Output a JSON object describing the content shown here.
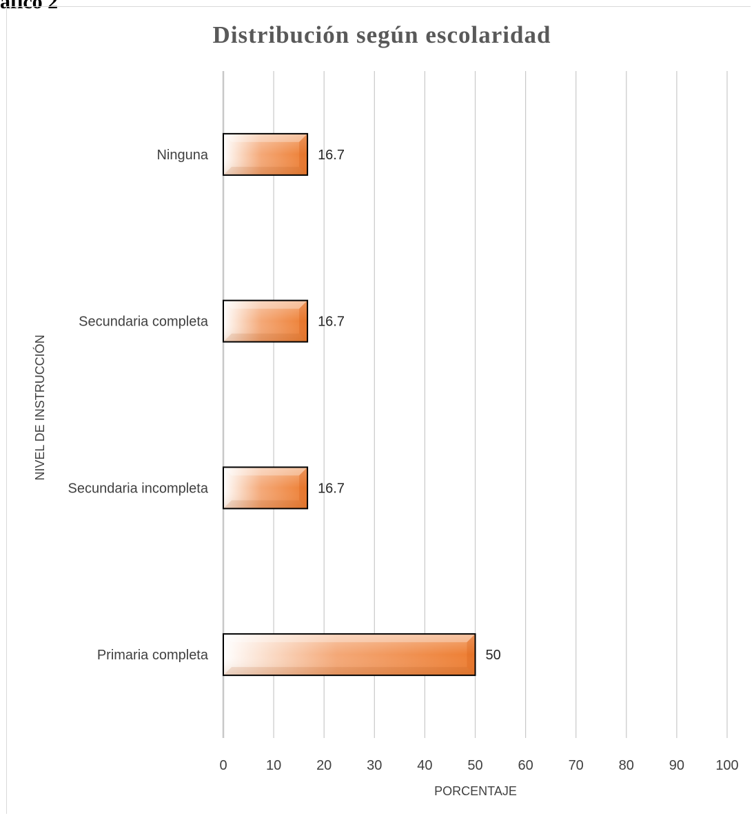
{
  "page_fragment": "afico 2",
  "colors": {
    "bar": "#ed7d31",
    "grid": "#c8c8c8",
    "bar_border": "#000000"
  },
  "chart_data": {
    "type": "bar",
    "orientation": "horizontal",
    "title": "Distribución según escolaridad",
    "xlabel": "PORCENTAJE",
    "ylabel": "NIVEL DE INSTRUCCIÓN",
    "categories": [
      "Ninguna",
      "Secundaria completa",
      "Secundaria incompleta",
      "Primaria completa"
    ],
    "values": [
      16.7,
      16.7,
      16.7,
      50
    ],
    "value_labels": [
      "16.7",
      "16.7",
      "16.7",
      "50"
    ],
    "xlim": [
      0,
      100
    ],
    "xticks": [
      "0",
      "10",
      "20",
      "30",
      "40",
      "50",
      "60",
      "70",
      "80",
      "90",
      "100"
    ],
    "grid": "vertical",
    "legend": "none"
  }
}
